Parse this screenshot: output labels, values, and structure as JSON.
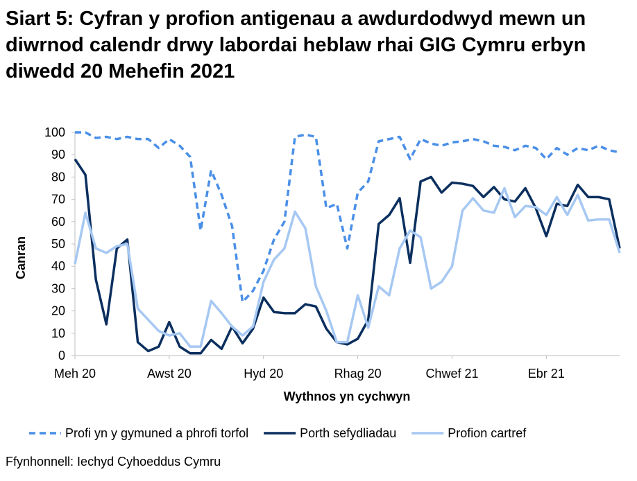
{
  "chart_data": {
    "type": "line",
    "title": "Siart 5: Cyfran y profion antigenau a awdurdodwyd mewn un diwrnod calendr drwy labordai heblaw rhai GIG Cymru erbyn diwedd 20 Mehefin 2021",
    "x_label": "Wythnos yn cychwyn",
    "y_label": "Canran",
    "source": "Ffynhonnell: Iechyd Cyhoeddus Cymru",
    "categories": [
      "Meh 20",
      null,
      null,
      null,
      null,
      null,
      null,
      null,
      null,
      "Awst 20",
      null,
      null,
      null,
      null,
      null,
      null,
      null,
      null,
      "Hyd 20",
      null,
      null,
      null,
      null,
      null,
      null,
      null,
      null,
      "Rhag 20",
      null,
      null,
      null,
      null,
      null,
      null,
      null,
      null,
      "Chwef 21",
      null,
      null,
      null,
      null,
      null,
      null,
      null,
      null,
      "Ebr 21",
      null,
      null,
      null,
      null,
      null,
      null,
      null
    ],
    "ylim": [
      0,
      100
    ],
    "yticks": [
      0,
      10,
      20,
      30,
      40,
      50,
      60,
      70,
      80,
      90,
      100
    ],
    "grid": false,
    "legend": "bottom",
    "series": [
      {
        "name": "Profi yn y gymuned a phrofi torfol",
        "color": "#4a8fe7",
        "dashed": true,
        "values": [
          100,
          100,
          97.5,
          98,
          97,
          98,
          97,
          97,
          93,
          97,
          94,
          89,
          56,
          83,
          72,
          58,
          24,
          29,
          38,
          52,
          60,
          98,
          99,
          98,
          66,
          68,
          48,
          73,
          78,
          96,
          97,
          98,
          88,
          97,
          95,
          94,
          95.5,
          96,
          97,
          96,
          94,
          93.5,
          92,
          94,
          93,
          88,
          93,
          90,
          93,
          92,
          94,
          92,
          91
        ]
      },
      {
        "name": "Porth sefydliadau",
        "color": "#0b2f5e",
        "dashed": false,
        "values": [
          88,
          81,
          34,
          14,
          48,
          52,
          6,
          2,
          4,
          15,
          4,
          1,
          1,
          7,
          3,
          13,
          5.5,
          12,
          26,
          19.5,
          19,
          19,
          23,
          22,
          12,
          6,
          5,
          7.5,
          16,
          59,
          63,
          70.5,
          41.5,
          78,
          80,
          73,
          77.5,
          77,
          76,
          71,
          75.5,
          70,
          69,
          75,
          66,
          53.5,
          68,
          67,
          76.5,
          71,
          71,
          70,
          48
        ]
      },
      {
        "name": "Profion cartref",
        "color": "#a6c8f2",
        "dashed": false,
        "values": [
          41,
          64,
          48,
          46,
          49,
          50,
          21,
          16,
          11,
          9,
          10,
          4,
          4,
          24.5,
          19,
          13,
          9,
          13,
          33,
          43,
          48,
          64.5,
          57,
          31,
          20,
          6,
          6,
          27,
          12.5,
          31,
          27,
          48,
          56,
          53,
          30,
          33,
          40,
          65,
          70.5,
          65,
          64,
          75,
          62,
          67,
          66.5,
          63,
          71,
          63,
          72,
          60.5,
          61,
          61,
          46
        ]
      }
    ]
  }
}
